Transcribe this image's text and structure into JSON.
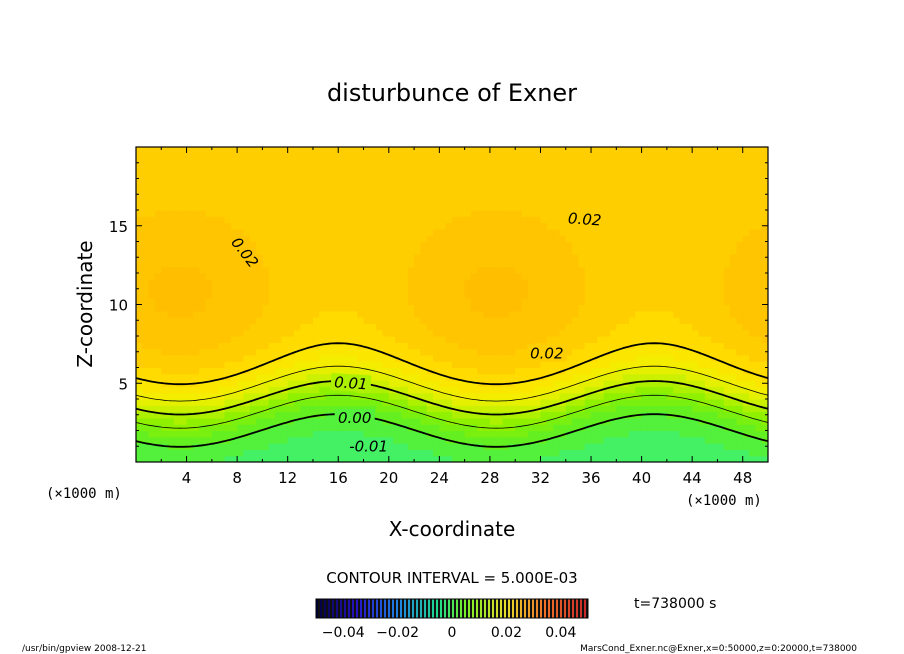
{
  "chart_data": {
    "type": "heatmap",
    "title": "disturbunce of Exner",
    "xlabel": "X-coordinate",
    "ylabel": "Z-coordinate",
    "x_unit_left": "(×1000 m)",
    "x_unit_right": "(×1000 m)",
    "xlim": [
      0,
      50
    ],
    "ylim": [
      0,
      20
    ],
    "xticks": [
      4,
      8,
      12,
      16,
      20,
      24,
      28,
      32,
      36,
      40,
      44,
      48
    ],
    "yticks": [
      5,
      10,
      15
    ],
    "contour_interval_text": "CONTOUR INTERVAL = 5.000E-03",
    "time_text": "t=738000 s",
    "contour_labels": [
      {
        "text": "0.02",
        "x": 8.6,
        "z": 13.3,
        "angle": 52
      },
      {
        "text": "0.02",
        "x": 35.5,
        "z": 15.4,
        "angle": 4
      },
      {
        "text": "0.02",
        "x": 32.5,
        "z": 6.9,
        "angle": 0
      },
      {
        "text": "0.01",
        "x": 17.0,
        "z": 5.0,
        "angle": 4
      },
      {
        "text": "0.00",
        "x": 17.3,
        "z": 2.8,
        "angle": 0
      },
      {
        "text": "-0.01",
        "x": 18.4,
        "z": 1.0,
        "angle": 0
      }
    ],
    "colorbar": {
      "min": -0.05,
      "max": 0.05,
      "tick_values": [
        -0.04,
        -0.02,
        0,
        0.02,
        0.04
      ],
      "tick_labels": [
        "−0.04",
        "−0.02",
        "0",
        "0.02",
        "0.04"
      ]
    },
    "colors": {
      "low": "#20f0c0",
      "mid": "#80f000",
      "high": "#ffd800",
      "peak": "#ffc000"
    }
  },
  "footer": {
    "left": "/usr/bin/gpview   2008-12-21",
    "right": "MarsCond_Exner.nc@Exner,x=0:50000,z=0:20000,t=738000"
  }
}
